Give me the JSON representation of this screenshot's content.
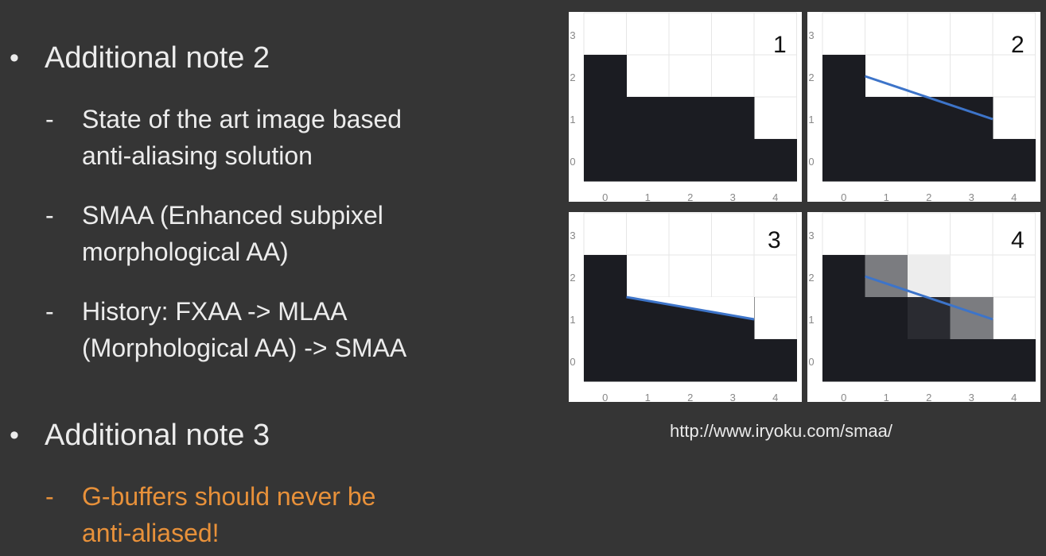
{
  "notes": [
    {
      "bullet": "•",
      "heading": "Additional note 2",
      "items": [
        {
          "dash": "-",
          "lines": [
            "State of the art image based",
            "anti-aliasing solution"
          ]
        },
        {
          "dash": "-",
          "lines": [
            "SMAA (Enhanced subpixel",
            "morphological AA)"
          ]
        },
        {
          "dash": "-",
          "lines": [
            "History: FXAA -> MLAA",
            "(Morphological AA) -> SMAA"
          ]
        }
      ]
    },
    {
      "bullet": "•",
      "heading": "Additional note 3",
      "items": [
        {
          "dash": "-",
          "lines": [
            "G-buffers should never be",
            "anti-aliased!"
          ],
          "color": "#e8913a"
        }
      ]
    }
  ],
  "panels": [
    {
      "number": "1",
      "line": false,
      "cells": "base"
    },
    {
      "number": "2",
      "line": true,
      "cells": "base"
    },
    {
      "number": "3",
      "line": true,
      "cells": "clipped"
    },
    {
      "number": "4",
      "line": true,
      "cells": "blended"
    }
  ],
  "axis": {
    "x_ticks": [
      "0",
      "1",
      "2",
      "3",
      "4"
    ],
    "y_ticks": [
      "0",
      "1",
      "2",
      "3"
    ]
  },
  "colors": {
    "dark_cell": "#1b1c22",
    "line": "#3d74c9",
    "grid": "#e6e6e6",
    "gray_cell": "#7b7c80",
    "light_cell": "#ededed",
    "mid_dark_cell": "#2a2b31"
  },
  "source_url": "http://www.iryoku.com/smaa/"
}
